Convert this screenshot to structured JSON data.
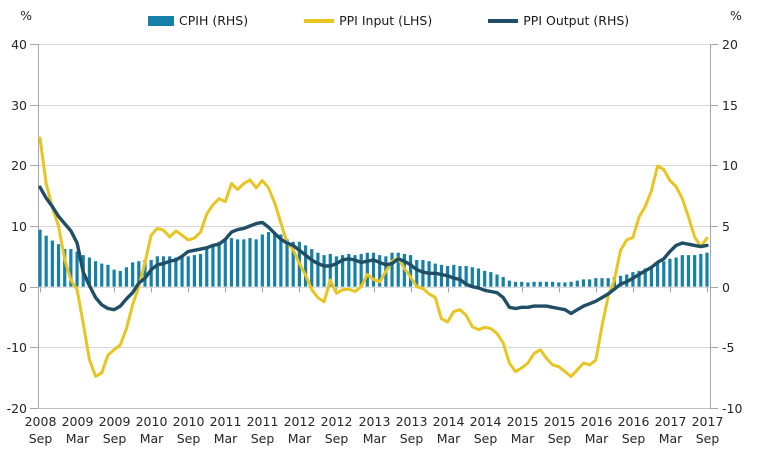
{
  "legend": [
    {
      "label": "CPIH (RHS)",
      "swatch": "bar",
      "color": "#1680A6"
    },
    {
      "label": "PPI Input (LHS)",
      "swatch": "line",
      "color": "#E8C520"
    },
    {
      "label": "PPI Output (RHS)",
      "swatch": "line",
      "color": "#1F4E66"
    }
  ],
  "chart_data": {
    "type": "combo",
    "x_start": "2008 Sep",
    "x_end": "2017 Sep",
    "x_frequency": "monthly",
    "left_axis": {
      "unit": "%",
      "min": -20,
      "max": 40,
      "ticks": [
        40,
        30,
        20,
        10,
        0,
        -10,
        -20
      ]
    },
    "right_axis": {
      "unit": "%",
      "min": -10,
      "max": 20,
      "ticks": [
        20,
        15,
        10,
        5,
        0,
        -5,
        -10
      ]
    },
    "x_tick_labels": [
      {
        "year": "2008",
        "month": "Sep"
      },
      {
        "year": "2009",
        "month": "Mar"
      },
      {
        "year": "2009",
        "month": "Sep"
      },
      {
        "year": "2010",
        "month": "Mar"
      },
      {
        "year": "2010",
        "month": "Sep"
      },
      {
        "year": "2011",
        "month": "Mar"
      },
      {
        "year": "2011",
        "month": "Sep"
      },
      {
        "year": "2012",
        "month": "Mar"
      },
      {
        "year": "2012",
        "month": "Sep"
      },
      {
        "year": "2013",
        "month": "Mar"
      },
      {
        "year": "2013",
        "month": "Sep"
      },
      {
        "year": "2014",
        "month": "Mar"
      },
      {
        "year": "2014",
        "month": "Sep"
      },
      {
        "year": "2015",
        "month": "Mar"
      },
      {
        "year": "2015",
        "month": "Sep"
      },
      {
        "year": "2016",
        "month": "Mar"
      },
      {
        "year": "2016",
        "month": "Sep"
      },
      {
        "year": "2017",
        "month": "Mar"
      },
      {
        "year": "2017",
        "month": "Sep"
      }
    ],
    "grid": true,
    "legend_position": "top",
    "series": [
      {
        "name": "CPIH (RHS)",
        "type": "bar",
        "axis": "right",
        "color": "#1680A6",
        "values": [
          4.7,
          4.2,
          3.8,
          3.5,
          3.1,
          3.1,
          2.9,
          2.6,
          2.4,
          2.1,
          1.9,
          1.8,
          1.4,
          1.3,
          1.6,
          2.0,
          2.1,
          2.2,
          2.2,
          2.5,
          2.5,
          2.5,
          2.4,
          2.5,
          2.5,
          2.6,
          2.7,
          3.1,
          3.5,
          3.7,
          3.9,
          4.0,
          3.9,
          3.9,
          4.0,
          3.9,
          4.3,
          4.5,
          4.4,
          4.3,
          3.9,
          3.7,
          3.7,
          3.4,
          3.1,
          2.8,
          2.6,
          2.7,
          2.5,
          2.6,
          2.7,
          2.6,
          2.7,
          2.8,
          2.8,
          2.6,
          2.5,
          2.8,
          2.8,
          2.7,
          2.6,
          2.2,
          2.2,
          2.1,
          1.9,
          1.8,
          1.7,
          1.8,
          1.7,
          1.7,
          1.6,
          1.5,
          1.3,
          1.2,
          1.0,
          0.8,
          0.5,
          0.4,
          0.4,
          0.35,
          0.4,
          0.4,
          0.4,
          0.4,
          0.35,
          0.35,
          0.4,
          0.5,
          0.6,
          0.6,
          0.7,
          0.7,
          0.7,
          0.8,
          0.9,
          1.0,
          1.2,
          1.3,
          1.5,
          1.7,
          1.9,
          2.1,
          2.3,
          2.4,
          2.6,
          2.6,
          2.6,
          2.7,
          2.8
        ]
      },
      {
        "name": "PPI Input (LHS)",
        "type": "line",
        "axis": "left",
        "color": "#E8C520",
        "values": [
          24.5,
          17.0,
          13.0,
          10.0,
          4.5,
          1.1,
          -0.5,
          -6.0,
          -12.0,
          -14.8,
          -14.2,
          -11.3,
          -10.4,
          -9.6,
          -6.9,
          -3.0,
          0.0,
          4.0,
          8.5,
          9.6,
          9.3,
          8.2,
          9.2,
          8.5,
          7.7,
          8.0,
          9.0,
          12.0,
          13.5,
          14.5,
          14.0,
          17.0,
          16.0,
          17.0,
          17.6,
          16.3,
          17.5,
          16.3,
          13.8,
          10.5,
          7.3,
          6.1,
          3.8,
          1.9,
          -0.5,
          -1.8,
          -2.5,
          1.1,
          -1.1,
          -0.5,
          -0.4,
          -0.8,
          0.0,
          2.0,
          1.2,
          0.8,
          2.5,
          4.2,
          4.7,
          3.0,
          1.6,
          0.0,
          -0.3,
          -1.2,
          -1.8,
          -5.3,
          -5.8,
          -4.1,
          -3.8,
          -4.7,
          -6.6,
          -7.1,
          -6.7,
          -6.9,
          -7.7,
          -9.3,
          -12.6,
          -14.0,
          -13.4,
          -12.6,
          -11.0,
          -10.4,
          -11.8,
          -12.9,
          -13.2,
          -14.0,
          -14.8,
          -13.7,
          -12.6,
          -12.9,
          -12.1,
          -6.5,
          -1.6,
          1.1,
          6.0,
          7.7,
          8.1,
          11.5,
          13.2,
          15.8,
          19.9,
          19.3,
          17.5,
          16.5,
          14.5,
          11.5,
          8.2,
          6.6,
          8.0
        ]
      },
      {
        "name": "PPI Output (RHS)",
        "type": "line",
        "axis": "right",
        "color": "#1F4E66",
        "values": [
          8.2,
          7.3,
          6.6,
          5.8,
          5.2,
          4.6,
          3.6,
          1.2,
          0.1,
          -0.9,
          -1.5,
          -1.8,
          -1.9,
          -1.6,
          -1.0,
          -0.5,
          0.3,
          0.7,
          1.4,
          1.8,
          1.9,
          2.1,
          2.2,
          2.5,
          2.9,
          3.0,
          3.1,
          3.2,
          3.4,
          3.5,
          3.9,
          4.5,
          4.7,
          4.8,
          5.0,
          5.2,
          5.3,
          4.9,
          4.4,
          3.9,
          3.6,
          3.4,
          3.0,
          2.6,
          2.2,
          1.9,
          1.7,
          1.7,
          1.9,
          2.2,
          2.3,
          2.2,
          2.0,
          2.1,
          2.2,
          2.0,
          1.8,
          1.9,
          2.3,
          2.1,
          1.8,
          1.4,
          1.2,
          1.1,
          1.1,
          1.0,
          0.9,
          0.7,
          0.6,
          0.2,
          0.0,
          -0.1,
          -0.3,
          -0.4,
          -0.5,
          -0.9,
          -1.7,
          -1.8,
          -1.7,
          -1.7,
          -1.6,
          -1.6,
          -1.6,
          -1.7,
          -1.8,
          -1.9,
          -2.2,
          -1.9,
          -1.6,
          -1.4,
          -1.2,
          -0.9,
          -0.6,
          -0.2,
          0.2,
          0.4,
          0.7,
          1.0,
          1.3,
          1.6,
          2.0,
          2.3,
          2.9,
          3.4,
          3.6,
          3.5,
          3.4,
          3.3,
          3.4
        ]
      }
    ],
    "style": {
      "gridline_color": "#D9D9D9",
      "axis_line_color": "#A6A6A6",
      "bottom_line_color": "#BFBFBF",
      "label_color": "#262626"
    }
  }
}
